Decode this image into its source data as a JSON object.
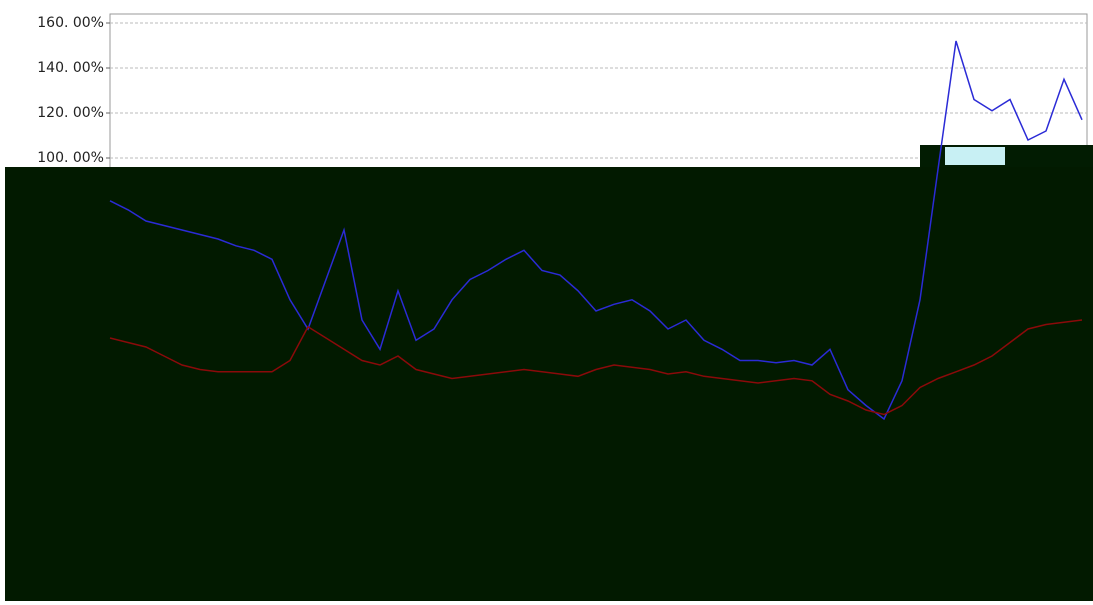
{
  "chart_data": {
    "type": "line",
    "categories": [
      null,
      null,
      null,
      null,
      null,
      null,
      null,
      null,
      null,
      null,
      null,
      null,
      null,
      null,
      null,
      null,
      null,
      null,
      null,
      null,
      null,
      null,
      null,
      null,
      null,
      null,
      null,
      null,
      null,
      null,
      null,
      null,
      null,
      null,
      null,
      null,
      null,
      null,
      null,
      null,
      null,
      null,
      null,
      null,
      null,
      null,
      null,
      null,
      null,
      null,
      null,
      null,
      null,
      null,
      null
    ],
    "series": [
      {
        "color": "#2b2bd6",
        "values": [
          81,
          77,
          72,
          70,
          68,
          66,
          64,
          61,
          59,
          55,
          37,
          24,
          46,
          68,
          28,
          15,
          41,
          19,
          24,
          37,
          46,
          50,
          55,
          59,
          50,
          48,
          41,
          32,
          35,
          37,
          32,
          24,
          28,
          19,
          15,
          10,
          10,
          9,
          10,
          8,
          15,
          -3,
          -10,
          -16,
          1,
          37,
          95,
          152,
          126,
          121,
          126,
          108,
          112,
          135,
          117
        ]
      },
      {
        "color": "#8b0a0a",
        "values": [
          20,
          18,
          16,
          12,
          8,
          6,
          5,
          5,
          5,
          5,
          10,
          25,
          20,
          15,
          10,
          8,
          12,
          6,
          4,
          2,
          3,
          4,
          5,
          6,
          5,
          4,
          3,
          6,
          8,
          7,
          6,
          4,
          5,
          3,
          2,
          1,
          0,
          1,
          2,
          1,
          -5,
          -8,
          -12,
          -14,
          -10,
          -2,
          2,
          5,
          8,
          12,
          18,
          24,
          26,
          27,
          28
        ]
      }
    ],
    "ylim": [
      -96,
      164
    ],
    "yticks": [
      {
        "value": 100,
        "label": "100. 00%"
      },
      {
        "value": 120,
        "label": "120. 00%"
      },
      {
        "value": 140,
        "label": "140. 00%"
      },
      {
        "value": 160,
        "label": "160. 00%"
      }
    ],
    "grid": true
  }
}
